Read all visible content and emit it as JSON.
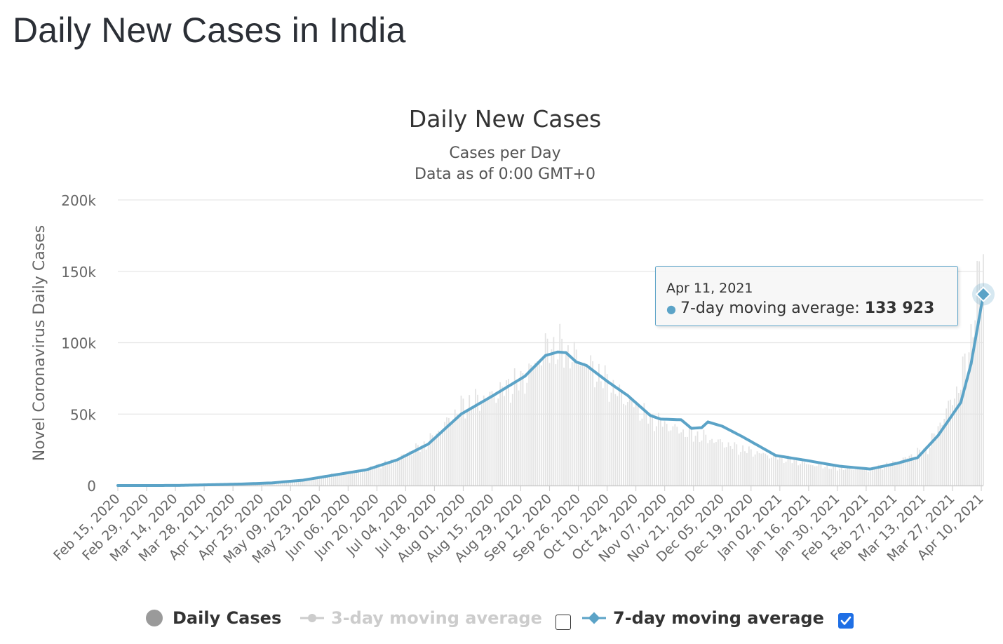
{
  "page": {
    "title": "Daily New Cases in India"
  },
  "colors": {
    "bars": "#e3e3e3",
    "line7": "#5ba3c7",
    "grid": "#e6e6e6",
    "legend_disabled": "#cccccc",
    "checkbox_checked": "#1f6fe5"
  },
  "chart_data": {
    "type": "line",
    "title": "Daily New Cases",
    "subtitle": [
      "Cases per Day",
      "Data as of 0:00 GMT+0"
    ],
    "ylabel": "Novel Coronavirus Daily Cases",
    "xlabel": "",
    "ylim": [
      0,
      200000
    ],
    "y_ticks": [
      0,
      50000,
      100000,
      150000,
      200000
    ],
    "y_tick_labels": [
      "0",
      "50k",
      "100k",
      "150k",
      "200k"
    ],
    "x_range": [
      "2020-02-15",
      "2021-04-11"
    ],
    "x_ticks": [
      "2020-02-15",
      "2020-02-29",
      "2020-03-14",
      "2020-03-28",
      "2020-04-11",
      "2020-04-25",
      "2020-05-09",
      "2020-05-23",
      "2020-06-06",
      "2020-06-20",
      "2020-07-04",
      "2020-07-18",
      "2020-08-01",
      "2020-08-15",
      "2020-08-29",
      "2020-09-12",
      "2020-09-26",
      "2020-10-10",
      "2020-10-24",
      "2020-11-07",
      "2020-11-21",
      "2020-12-05",
      "2020-12-19",
      "2021-01-02",
      "2021-01-16",
      "2021-01-30",
      "2021-02-13",
      "2021-02-27",
      "2021-03-13",
      "2021-03-27",
      "2021-04-10"
    ],
    "x_tick_labels": [
      "Feb 15, 2020",
      "Feb 29, 2020",
      "Mar 14, 2020",
      "Mar 28, 2020",
      "Apr 11, 2020",
      "Apr 25, 2020",
      "May 09, 2020",
      "May 23, 2020",
      "Jun 06, 2020",
      "Jun 20, 2020",
      "Jul 04, 2020",
      "Jul 18, 2020",
      "Aug 01, 2020",
      "Aug 15, 2020",
      "Aug 29, 2020",
      "Sep 12, 2020",
      "Sep 26, 2020",
      "Oct 10, 2020",
      "Oct 24, 2020",
      "Nov 07, 2020",
      "Nov 21, 2020",
      "Dec 05, 2020",
      "Dec 19, 2020",
      "Jan 02, 2021",
      "Jan 16, 2021",
      "Jan 30, 2021",
      "Feb 13, 2021",
      "Feb 27, 2021",
      "Mar 13, 2021",
      "Mar 27, 2021",
      "Apr 10, 2021"
    ],
    "grid": true,
    "legend_position": "bottom",
    "series": [
      {
        "name": "Daily Cases",
        "type": "bar",
        "visible": true,
        "points": [
          [
            "2020-02-15",
            0
          ],
          [
            "2020-03-01",
            10
          ],
          [
            "2020-03-15",
            15
          ],
          [
            "2020-03-31",
            250
          ],
          [
            "2020-04-15",
            1100
          ],
          [
            "2020-04-30",
            1800
          ],
          [
            "2020-05-15",
            3800
          ],
          [
            "2020-05-31",
            7800
          ],
          [
            "2020-06-15",
            11000
          ],
          [
            "2020-06-30",
            18500
          ],
          [
            "2020-07-15",
            30000
          ],
          [
            "2020-07-31",
            55000
          ],
          [
            "2020-08-15",
            63000
          ],
          [
            "2020-08-31",
            75000
          ],
          [
            "2020-09-10",
            95000
          ],
          [
            "2020-09-16",
            97000
          ],
          [
            "2020-09-30",
            85000
          ],
          [
            "2020-10-15",
            65000
          ],
          [
            "2020-10-31",
            47000
          ],
          [
            "2020-11-15",
            38000
          ],
          [
            "2020-11-30",
            32000
          ],
          [
            "2020-12-15",
            25000
          ],
          [
            "2020-12-31",
            20000
          ],
          [
            "2021-01-15",
            15000
          ],
          [
            "2021-01-31",
            12000
          ],
          [
            "2021-02-15",
            11000
          ],
          [
            "2021-02-28",
            16500
          ],
          [
            "2021-03-15",
            26000
          ],
          [
            "2021-03-31",
            72000
          ],
          [
            "2021-04-05",
            103000
          ],
          [
            "2021-04-11",
            168000
          ]
        ]
      },
      {
        "name": "3-day moving average",
        "type": "line",
        "visible": false
      },
      {
        "name": "7-day moving average",
        "type": "line",
        "visible": true,
        "points": [
          [
            "2020-02-15",
            0
          ],
          [
            "2020-03-01",
            0
          ],
          [
            "2020-03-15",
            60
          ],
          [
            "2020-03-31",
            500
          ],
          [
            "2020-04-15",
            1000
          ],
          [
            "2020-04-30",
            1800
          ],
          [
            "2020-05-15",
            3700
          ],
          [
            "2020-05-31",
            7500
          ],
          [
            "2020-06-15",
            11000
          ],
          [
            "2020-06-30",
            18000
          ],
          [
            "2020-07-15",
            29000
          ],
          [
            "2020-07-31",
            50000
          ],
          [
            "2020-08-15",
            62500
          ],
          [
            "2020-08-31",
            76500
          ],
          [
            "2020-09-10",
            91000
          ],
          [
            "2020-09-16",
            93500
          ],
          [
            "2020-09-20",
            93000
          ],
          [
            "2020-09-25",
            86500
          ],
          [
            "2020-09-30",
            84000
          ],
          [
            "2020-10-10",
            73000
          ],
          [
            "2020-10-20",
            63000
          ],
          [
            "2020-10-31",
            49000
          ],
          [
            "2020-11-05",
            46500
          ],
          [
            "2020-11-15",
            46000
          ],
          [
            "2020-11-20",
            40000
          ],
          [
            "2020-11-25",
            40500
          ],
          [
            "2020-11-28",
            44500
          ],
          [
            "2020-12-05",
            41500
          ],
          [
            "2020-12-15",
            34000
          ],
          [
            "2020-12-31",
            21000
          ],
          [
            "2021-01-15",
            17500
          ],
          [
            "2021-01-31",
            13500
          ],
          [
            "2021-02-15",
            11500
          ],
          [
            "2021-02-28",
            15500
          ],
          [
            "2021-03-10",
            19500
          ],
          [
            "2021-03-20",
            35000
          ],
          [
            "2021-03-31",
            58000
          ],
          [
            "2021-04-05",
            85000
          ],
          [
            "2021-04-11",
            133923
          ]
        ]
      }
    ],
    "tooltip": {
      "date": "Apr 11, 2021",
      "series": "7-day moving average",
      "value": 133923,
      "value_label": "133 923"
    }
  },
  "legend": {
    "daily_cases": "Daily Cases",
    "ma3": "3-day moving average",
    "ma7": "7-day moving average",
    "ma3_checked": false,
    "ma7_checked": true
  },
  "tooltip": {
    "date": "Apr 11, 2021",
    "series_label": "7-day moving average:",
    "value_label": "133 923"
  }
}
